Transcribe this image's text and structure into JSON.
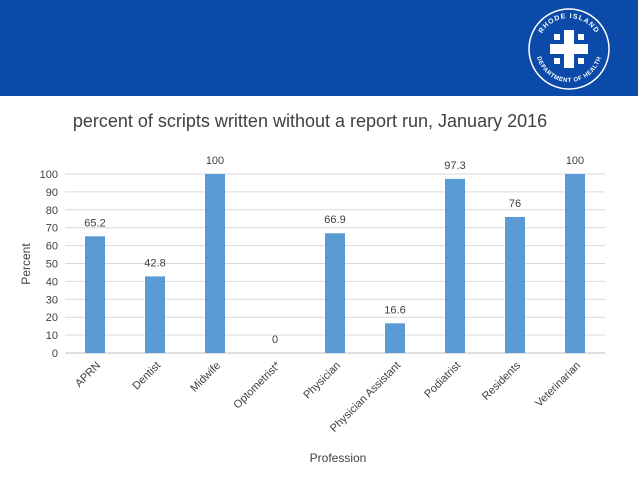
{
  "header": {
    "logo_text_top": "RHODE ISLAND",
    "logo_text_bottom": "DEPARTMENT OF HEALTH"
  },
  "colors": {
    "banner": "#0b4aa8",
    "bar": "#5b9bd5",
    "grid": "#d9d9d9",
    "text": "#404040"
  },
  "chart_data": {
    "type": "bar",
    "title": "percent of scripts written without a report run, January 2016",
    "xlabel": "Profession",
    "ylabel": "Percent",
    "ylim": [
      0,
      100
    ],
    "yticks": [
      0,
      10,
      20,
      30,
      40,
      50,
      60,
      70,
      80,
      90,
      100
    ],
    "grid": true,
    "categories": [
      "APRN",
      "Dentist",
      "Midwife",
      "Optometrist*",
      "Physician",
      "Physician Assistant",
      "Podiatrist",
      "Residents",
      "Veterinarian"
    ],
    "values": [
      65.2,
      42.8,
      100,
      0,
      66.9,
      16.6,
      97.3,
      76,
      100
    ],
    "value_labels": [
      "65.2",
      "42.8",
      "100",
      "0",
      "66.9",
      "16.6",
      "97.3",
      "76",
      "100"
    ]
  }
}
